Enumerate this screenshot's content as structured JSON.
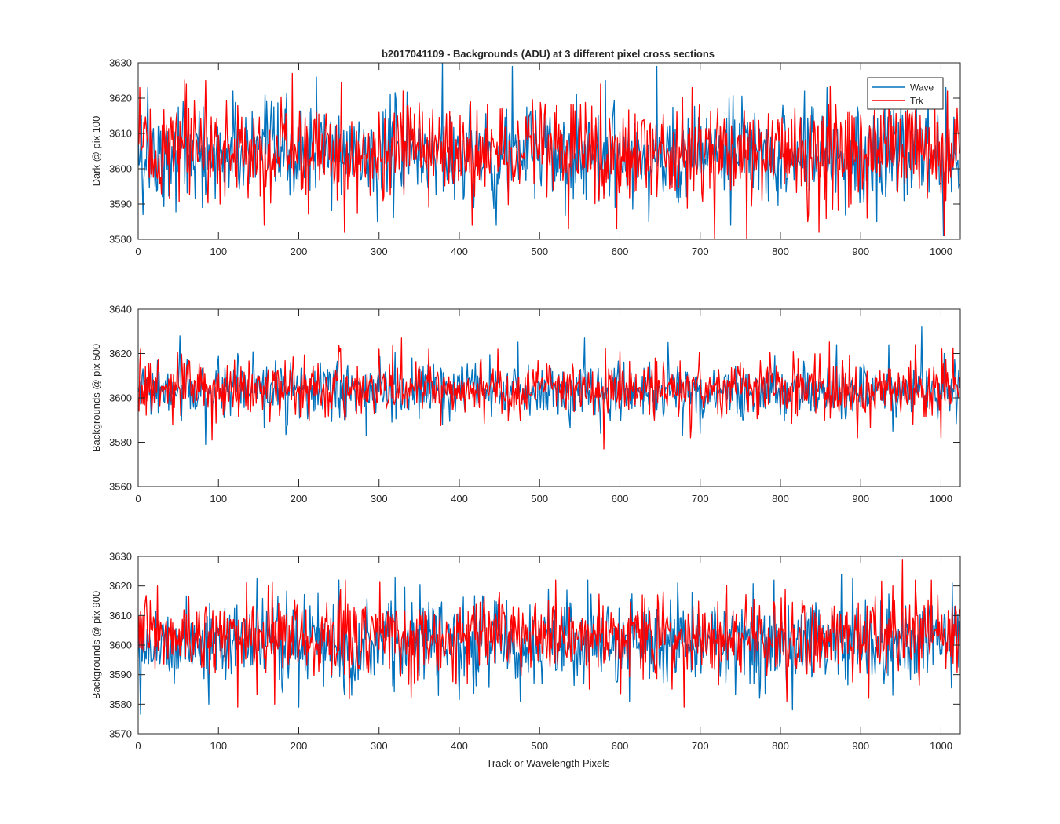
{
  "figure": {
    "title": "b2017041109 - Backgrounds (ADU) at 3 different pixel cross sections",
    "xlabel": "Track or Wavelength Pixels"
  },
  "chart_data": [
    {
      "type": "line",
      "ylabel": "Dark @ pix 100",
      "xlim": [
        0,
        1024
      ],
      "ylim": [
        3580,
        3630
      ],
      "xticks": [
        0,
        100,
        200,
        300,
        400,
        500,
        600,
        700,
        800,
        900,
        1000
      ],
      "yticks": [
        3580,
        3590,
        3600,
        3610,
        3620,
        3630
      ],
      "legend": {
        "placement": "top-right"
      },
      "series": [
        {
          "name": "Wave",
          "color": "#0072BD",
          "points": 1024,
          "mean": 3604,
          "sd": 6.5,
          "spikes": [
            [
              12,
              3623
            ],
            [
              56,
              3619
            ],
            [
              118,
              3622
            ],
            [
              222,
              3626
            ],
            [
              314,
              3621
            ],
            [
              379,
              3630
            ],
            [
              466,
              3629
            ],
            [
              546,
              3621
            ],
            [
              582,
              3625
            ],
            [
              646,
              3629
            ],
            [
              830,
              3622
            ],
            [
              858,
              3623
            ],
            [
              969,
              3624
            ],
            [
              1006,
              3623
            ],
            [
              6,
              3587
            ],
            [
              80,
              3589
            ],
            [
              298,
              3585
            ],
            [
              418,
              3589
            ],
            [
              446,
              3584
            ],
            [
              636,
              3585
            ],
            [
              738,
              3584
            ],
            [
              920,
              3585
            ],
            [
              1003,
              3581
            ]
          ]
        },
        {
          "name": "Trk",
          "color": "#FF0000",
          "points": 1024,
          "mean": 3605,
          "sd": 6.5,
          "spikes": [
            [
              2,
              3623
            ],
            [
              60,
              3624
            ],
            [
              84,
              3625
            ],
            [
              192,
              3627
            ],
            [
              330,
              3622
            ],
            [
              576,
              3624
            ],
            [
              690,
              3623
            ],
            [
              992,
              3624
            ],
            [
              1008,
              3622
            ],
            [
              157,
              3584
            ],
            [
              257,
              3582
            ],
            [
              416,
              3584
            ],
            [
              536,
              3583
            ],
            [
              596,
              3583
            ],
            [
              718,
              3580
            ],
            [
              758,
              3580
            ],
            [
              834,
              3585
            ],
            [
              848,
              3582
            ],
            [
              908,
              3586
            ],
            [
              1004,
              3581
            ]
          ]
        }
      ]
    },
    {
      "type": "line",
      "ylabel": "Backgrounds @ pix 500",
      "xlim": [
        0,
        1024
      ],
      "ylim": [
        3560,
        3640
      ],
      "xticks": [
        0,
        100,
        200,
        300,
        400,
        500,
        600,
        700,
        800,
        900,
        1000
      ],
      "yticks": [
        3560,
        3580,
        3600,
        3620,
        3640
      ],
      "series": [
        {
          "name": "Wave",
          "color": "#0072BD",
          "points": 1024,
          "mean": 3603,
          "sd": 6,
          "spikes": [
            [
              52,
              3628
            ],
            [
              124,
              3620
            ],
            [
              556,
              3627
            ],
            [
              660,
              3625
            ],
            [
              870,
              3624
            ],
            [
              976,
              3632
            ],
            [
              1004,
              3620
            ],
            [
              84,
              3579
            ],
            [
              284,
              3583
            ],
            [
              576,
              3584
            ],
            [
              700,
              3584
            ],
            [
              940,
              3585
            ]
          ]
        },
        {
          "name": "Trk",
          "color": "#FF0000",
          "points": 1024,
          "mean": 3604,
          "sd": 6,
          "spikes": [
            [
              3,
              3622
            ],
            [
              300,
              3622
            ],
            [
              328,
              3627
            ],
            [
              362,
              3622
            ],
            [
              448,
              3622
            ],
            [
              600,
              3621
            ],
            [
              816,
              3621
            ],
            [
              968,
              3624
            ],
            [
              92,
              3581
            ],
            [
              580,
              3577
            ],
            [
              688,
              3582
            ],
            [
              896,
              3582
            ],
            [
              1000,
              3582
            ]
          ]
        }
      ]
    },
    {
      "type": "line",
      "ylabel": "Backgrounds @ pix 900",
      "xlim": [
        0,
        1024
      ],
      "ylim": [
        3570,
        3630
      ],
      "xticks": [
        0,
        100,
        200,
        300,
        400,
        500,
        600,
        700,
        800,
        900,
        1000
      ],
      "yticks": [
        3570,
        3580,
        3590,
        3600,
        3610,
        3620,
        3630
      ],
      "series": [
        {
          "name": "Wave",
          "color": "#0072BD",
          "points": 1024,
          "mean": 3601,
          "sd": 7,
          "spikes": [
            [
              250,
              3622
            ],
            [
              560,
              3622
            ],
            [
              672,
              3621
            ],
            [
              792,
              3622
            ],
            [
              876,
              3624
            ],
            [
              1014,
              3621
            ],
            [
              88,
              3580
            ],
            [
              200,
              3579
            ],
            [
              266,
              3583
            ],
            [
              476,
              3581
            ],
            [
              612,
              3581
            ],
            [
              774,
              3582
            ],
            [
              940,
              3583
            ]
          ]
        },
        {
          "name": "Trk",
          "color": "#FF0000",
          "points": 1024,
          "mean": 3603,
          "sd": 6.5,
          "spikes": [
            [
              24,
              3620
            ],
            [
              162,
              3620
            ],
            [
              258,
              3622
            ],
            [
              520,
              3622
            ],
            [
              940,
              3620
            ],
            [
              952,
              3629
            ],
            [
              988,
              3622
            ],
            [
              124,
              3579
            ],
            [
              170,
              3580
            ],
            [
              340,
              3582
            ],
            [
              680,
              3579
            ],
            [
              808,
              3581
            ],
            [
              910,
              3582
            ]
          ]
        }
      ]
    }
  ]
}
